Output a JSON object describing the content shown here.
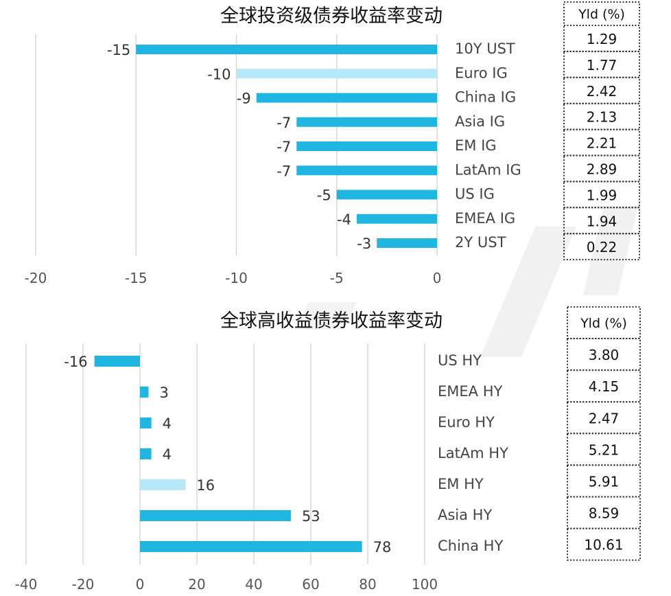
{
  "chart_data": [
    {
      "type": "bar",
      "orientation": "horizontal",
      "title": "全球投资级债券收益率变动",
      "categories": [
        "10Y UST",
        "Euro IG",
        "China IG",
        "Asia IG",
        "EM IG",
        "LatAm IG",
        "US IG",
        "EMEA IG",
        "2Y UST"
      ],
      "values": [
        -15,
        -10,
        -9,
        -7,
        -7,
        -7,
        -5,
        -4,
        -3
      ],
      "data_labels": [
        "-15",
        "-10",
        "-9",
        "-7",
        "-7",
        "-7",
        "-5",
        "-4",
        "-3"
      ],
      "highlight": [
        false,
        true,
        false,
        false,
        false,
        false,
        false,
        false,
        false
      ],
      "xlim": [
        -20,
        0
      ],
      "ticks": [
        -20,
        -15,
        -10,
        -5,
        0
      ],
      "tick_labels": [
        "-20",
        "-15",
        "-10",
        "-5",
        "0"
      ],
      "grid": true,
      "table": {
        "header": "Yld (%)",
        "values": [
          "1.29",
          "1.77",
          "2.42",
          "2.13",
          "2.21",
          "2.89",
          "1.99",
          "1.94",
          "0.22"
        ]
      }
    },
    {
      "type": "bar",
      "orientation": "horizontal",
      "title": "全球高收益债券收益率变动",
      "categories": [
        "US HY",
        "EMEA HY",
        "Euro HY",
        "LatAm HY",
        "EM HY",
        "Asia HY",
        "China HY"
      ],
      "values": [
        -16,
        3,
        4,
        4,
        16,
        53,
        78
      ],
      "data_labels": [
        "-16",
        "3",
        "4",
        "4",
        "16",
        "53",
        "78"
      ],
      "highlight": [
        false,
        false,
        false,
        false,
        true,
        false,
        false
      ],
      "xlim": [
        -40,
        100
      ],
      "ticks": [
        -40,
        -20,
        0,
        20,
        40,
        60,
        80,
        100
      ],
      "tick_labels": [
        "-40",
        "-20",
        "0",
        "20",
        "40",
        "60",
        "80",
        "100"
      ],
      "grid": true,
      "table": {
        "header": "Yld (%)",
        "values": [
          "3.80",
          "4.15",
          "2.47",
          "5.21",
          "5.91",
          "8.59",
          "10.61"
        ]
      }
    }
  ],
  "colors": {
    "bar": "#1fb6e1",
    "bar_highlight": "#b7e8f8",
    "grid": "#d9d9d9",
    "watermark": "#f1f1f1"
  }
}
